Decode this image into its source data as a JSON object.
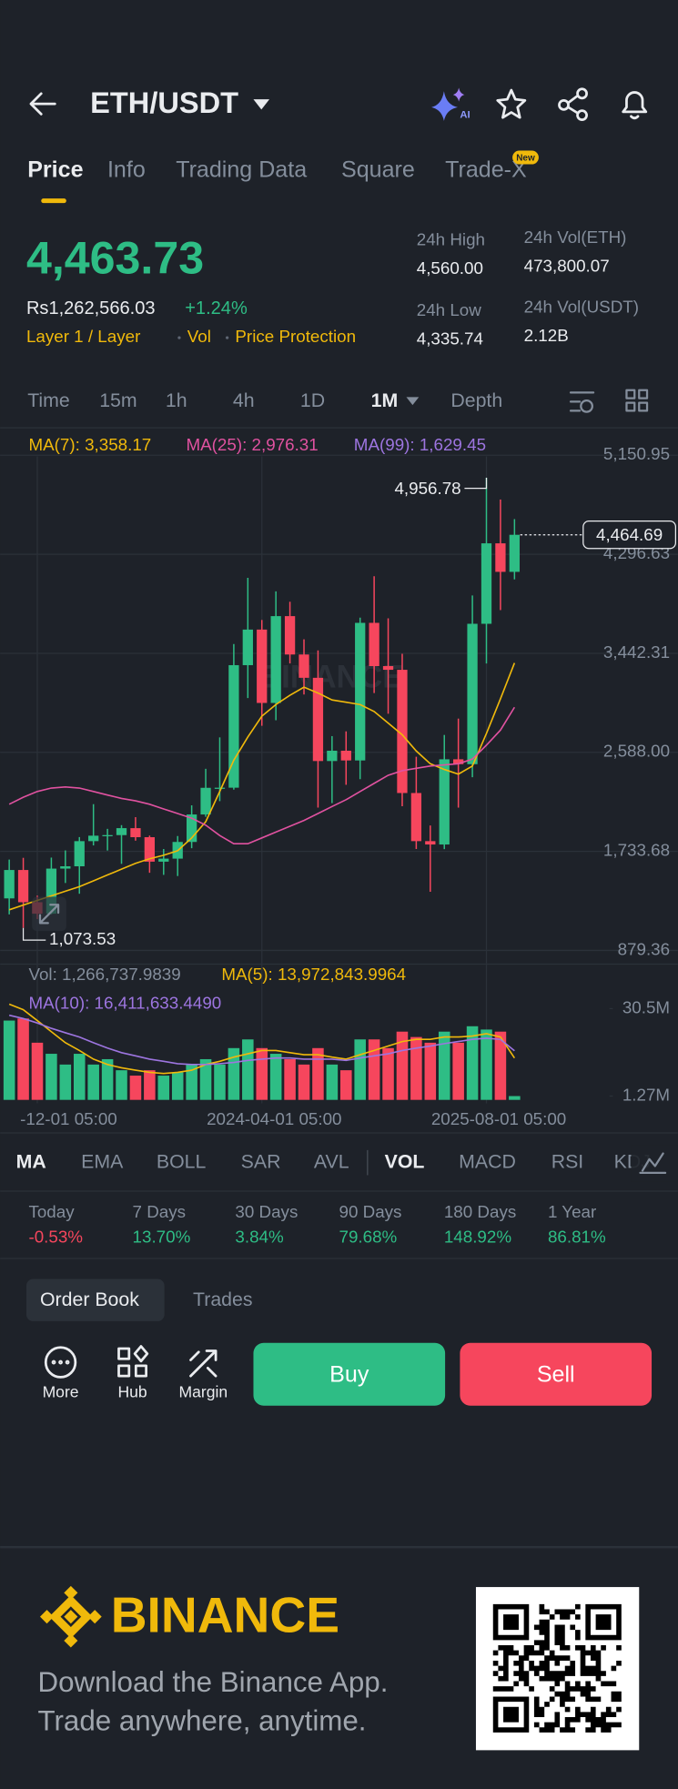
{
  "header": {
    "title": "ETH/USDT"
  },
  "tabs": {
    "items": [
      "Price",
      "Info",
      "Trading Data",
      "Square",
      "Trade-X"
    ],
    "badge": "New"
  },
  "price": {
    "last": "4,463.73",
    "fiat": "Rs1,262,566.03",
    "change": "+1.24%",
    "tags": [
      "Layer 1 / Layer",
      "Vol",
      "Price Protection"
    ]
  },
  "stats": [
    {
      "label": "24h High",
      "value": "4,560.00"
    },
    {
      "label": "24h Low",
      "value": "4,335.74"
    },
    {
      "label": "24h Vol(ETH)",
      "value": "473,800.07"
    },
    {
      "label": "24h Vol(USDT)",
      "value": "2.12B"
    }
  ],
  "intervals": [
    "Time",
    "15m",
    "1h",
    "4h",
    "1D",
    "1M",
    "Depth"
  ],
  "chart_data": {
    "type": "candlestick",
    "watermark": "BINANCE",
    "categories": [
      null,
      null,
      "-12-01 05:00",
      null,
      null,
      null,
      null,
      null,
      null,
      null,
      null,
      null,
      null,
      null,
      null,
      null,
      null,
      null,
      "2024-04-01 05:00",
      null,
      null,
      null,
      null,
      null,
      null,
      null,
      null,
      null,
      null,
      null,
      null,
      null,
      null,
      null,
      "2025-08-01 05:00",
      null,
      null
    ],
    "candles": {
      "open": [
        1328,
        1573,
        1295,
        1196,
        1585,
        1605,
        1822,
        1869,
        1874,
        1934,
        1856,
        1645,
        1671,
        1815,
        2052,
        2282,
        2283,
        3340,
        3647,
        3014,
        3763,
        3432,
        3231,
        2513,
        2602,
        2518,
        3705,
        3332,
        3300,
        2237,
        1822,
        1793,
        2528,
        2486,
        3697,
        4391,
        4145
      ],
      "high": [
        1663,
        1678,
        1352,
        1680,
        1742,
        1857,
        2141,
        1928,
        1960,
        2029,
        1870,
        1754,
        1866,
        2131,
        2446,
        2717,
        3522,
        4093,
        3730,
        3977,
        3887,
        3563,
        3467,
        2728,
        2769,
        3750,
        4107,
        3744,
        3438,
        2550,
        1957,
        2738,
        2879,
        3941,
        4956.78,
        4769,
        4600
      ],
      "low": [
        1190,
        1073.53,
        1150,
        1190,
        1461,
        1368,
        1785,
        1741,
        1626,
        1826,
        1549,
        1531,
        1521,
        1761,
        2032,
        2167,
        2266,
        3056,
        2817,
        2865,
        3355,
        3087,
        2111,
        2150,
        2308,
        2357,
        3099,
        2921,
        2123,
        1754,
        1385,
        1753,
        2111,
        2373,
        3355,
        3815,
        4080
      ],
      "close": [
        1573,
        1295,
        1196,
        1585,
        1605,
        1822,
        1869,
        1874,
        1934,
        1856,
        1645,
        1671,
        1815,
        2052,
        2282,
        2283,
        3340,
        3647,
        3014,
        3763,
        3432,
        3231,
        2513,
        2602,
        2518,
        3705,
        3332,
        3300,
        2237,
        1822,
        1793,
        2528,
        2486,
        3697,
        4391,
        4145,
        4464.69
      ]
    },
    "up_color": "#2ebd85",
    "down_color": "#f6465d",
    "ylim": [
      879.36,
      5150.95
    ],
    "yticks": [
      {
        "value": 879.36,
        "label": "879.36"
      },
      {
        "value": 1733.68,
        "label": "1,733.68"
      },
      {
        "value": 2588,
        "label": "2,588.00"
      },
      {
        "value": 3442.31,
        "label": "3,442.31"
      },
      {
        "value": 4296.63,
        "label": "4,296.63"
      },
      {
        "value": 5150.95,
        "label": "5,150.95"
      }
    ],
    "grid": true,
    "high_marker": {
      "value": 4956.78,
      "label": "4,956.78"
    },
    "low_marker": {
      "value": 1073.53,
      "label": "1,073.53"
    },
    "last_marker": {
      "value": 4464.69,
      "label": "4,464.69"
    },
    "ma_series": [
      {
        "name": "MA(7): 3,358.17",
        "color": "#f0b90b",
        "values": [
          1230,
          1270,
          1310,
          1350,
          1390,
          1430,
          1480,
          1530,
          1580,
          1630,
          1670,
          1700,
          1740,
          1850,
          1990,
          2250,
          2520,
          2720,
          2900,
          3000,
          3080,
          3150,
          3100,
          3040,
          3020,
          3000,
          2940,
          2840,
          2740,
          2600,
          2490,
          2440,
          2400,
          2470,
          2750,
          3050,
          3358.17
        ]
      },
      {
        "name": "MA(25): 2,976.31",
        "color": "#e052a0",
        "values": [
          2140,
          2200,
          2250,
          2280,
          2290,
          2280,
          2250,
          2220,
          2190,
          2170,
          2140,
          2100,
          2060,
          2020,
          1960,
          1870,
          1800,
          1800,
          1850,
          1900,
          1950,
          2000,
          2060,
          2120,
          2180,
          2250,
          2320,
          2390,
          2430,
          2450,
          2470,
          2480,
          2490,
          2530,
          2650,
          2780,
          2976.31
        ]
      },
      {
        "name": "MA(99): 1,629.45",
        "color": "#9d75e0"
      }
    ],
    "volume": {
      "label": "Vol: 1,266,737.9839",
      "values": [
        26500000,
        27200000,
        19100000,
        15400000,
        11800000,
        15400000,
        11800000,
        13600000,
        9900000,
        8100000,
        9900000,
        8100000,
        9200000,
        11800000,
        13600000,
        11800000,
        17300000,
        20200000,
        17300000,
        15400000,
        13600000,
        11800000,
        17300000,
        11800000,
        9900000,
        20200000,
        20200000,
        17300000,
        22800000,
        21000000,
        19100000,
        22800000,
        19100000,
        24600000,
        23500000,
        22800000,
        1266737.9839
      ],
      "ylim": [
        0,
        30500000
      ],
      "yticks": [
        {
          "value": 30500000,
          "label": "30.5M"
        },
        {
          "value": 1270000,
          "label": "1.27M"
        }
      ],
      "ma_series": [
        {
          "name": "MA(5): 13,972,843.9964",
          "color": "#f0b90b",
          "values": [
            32000000,
            30100000,
            26500000,
            22800000,
            19100000,
            16500000,
            13600000,
            11800000,
            10700000,
            9900000,
            9200000,
            8800000,
            9200000,
            9900000,
            11800000,
            12900000,
            14300000,
            15400000,
            16500000,
            16500000,
            15800000,
            15100000,
            15100000,
            14300000,
            13600000,
            15100000,
            16500000,
            18000000,
            19500000,
            20200000,
            20200000,
            21000000,
            21000000,
            21300000,
            22100000,
            21000000,
            13972843.9964
          ]
        },
        {
          "name": "MA(10): 16,411,633.4490",
          "color": "#9d75e0",
          "values": [
            28300000,
            27200000,
            25700000,
            23900000,
            22400000,
            21000000,
            19100000,
            17300000,
            15800000,
            14700000,
            13600000,
            12900000,
            12100000,
            11800000,
            11800000,
            12100000,
            12500000,
            13200000,
            13600000,
            14000000,
            14000000,
            13600000,
            13600000,
            13600000,
            13200000,
            14000000,
            14700000,
            15400000,
            16500000,
            17300000,
            18000000,
            18800000,
            19500000,
            20200000,
            20600000,
            20200000,
            16411633.449
          ]
        }
      ]
    }
  },
  "indicators": [
    "MA",
    "EMA",
    "BOLL",
    "SAR",
    "AVL",
    "VOL",
    "MACD",
    "RSI",
    "KDJ"
  ],
  "performance": [
    {
      "label": "Today",
      "value": "-0.53%"
    },
    {
      "label": "7 Days",
      "value": "13.70%"
    },
    {
      "label": "30 Days",
      "value": "3.84%"
    },
    {
      "label": "90 Days",
      "value": "79.68%"
    },
    {
      "label": "180 Days",
      "value": "148.92%"
    },
    {
      "label": "1 Year",
      "value": "86.81%"
    }
  ],
  "book_tabs": [
    "Order Book",
    "Trades"
  ],
  "actions": [
    "More",
    "Hub",
    "Margin"
  ],
  "buttons": {
    "buy": "Buy",
    "sell": "Sell"
  },
  "footer": {
    "brand": "BINANCE",
    "lines": [
      "Download the Binance App.",
      "Trade anywhere, anytime."
    ]
  }
}
